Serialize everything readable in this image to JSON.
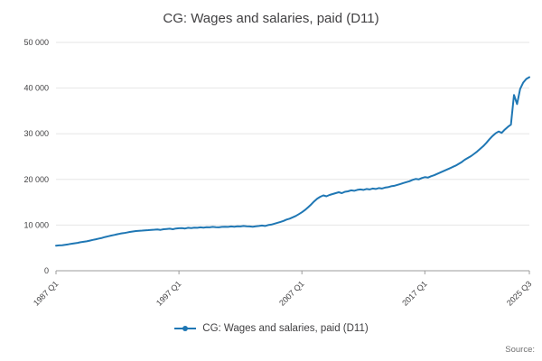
{
  "page": {
    "source_label": "Source:"
  },
  "chart_data": {
    "type": "line",
    "title": "CG: Wages and salaries, paid (D11)",
    "legend_position": "bottom",
    "grid": "horizontal",
    "line_color": "#1f77b4",
    "axis_color": "#9b9b9b",
    "grid_color": "#e6e6e6",
    "xlabel": "",
    "ylabel": "",
    "ylim": [
      0,
      50000
    ],
    "y_ticks": [
      0,
      10000,
      20000,
      30000,
      40000,
      50000
    ],
    "y_tick_labels": [
      "0",
      "10 000",
      "20 000",
      "30 000",
      "40 000",
      "50 000"
    ],
    "x_start": "1987 Q1",
    "x_end": "2025 Q3",
    "x_tick_labels": [
      "1987 Q1",
      "1997 Q1",
      "2007 Q1",
      "2017 Q1",
      "2025 Q3"
    ],
    "x_tick_indices": [
      0,
      40,
      80,
      120,
      154
    ],
    "series": [
      {
        "name": "CG: Wages and salaries, paid (D11)",
        "frequency": "quarterly",
        "values": [
          5500,
          5550,
          5600,
          5700,
          5800,
          5900,
          6000,
          6100,
          6250,
          6350,
          6450,
          6600,
          6750,
          6900,
          7050,
          7200,
          7400,
          7550,
          7700,
          7850,
          8000,
          8150,
          8250,
          8350,
          8500,
          8600,
          8700,
          8750,
          8800,
          8850,
          8900,
          8950,
          9000,
          9050,
          8950,
          9100,
          9150,
          9200,
          9100,
          9250,
          9300,
          9350,
          9250,
          9400,
          9350,
          9450,
          9400,
          9500,
          9450,
          9550,
          9500,
          9600,
          9550,
          9500,
          9600,
          9650,
          9600,
          9700,
          9650,
          9750,
          9700,
          9800,
          9750,
          9700,
          9650,
          9750,
          9800,
          9900,
          9800,
          10000,
          10100,
          10300,
          10500,
          10700,
          10900,
          11200,
          11400,
          11700,
          12000,
          12400,
          12800,
          13300,
          13900,
          14500,
          15200,
          15800,
          16200,
          16500,
          16300,
          16600,
          16800,
          17000,
          17200,
          17000,
          17300,
          17400,
          17600,
          17500,
          17700,
          17800,
          17700,
          17900,
          17800,
          18000,
          17900,
          18100,
          18000,
          18200,
          18300,
          18500,
          18600,
          18800,
          19000,
          19200,
          19400,
          19600,
          19900,
          20100,
          20000,
          20300,
          20500,
          20400,
          20700,
          20900,
          21200,
          21500,
          21800,
          22100,
          22400,
          22700,
          23000,
          23400,
          23800,
          24300,
          24700,
          25100,
          25600,
          26100,
          26700,
          27300,
          28000,
          28800,
          29500,
          30100,
          30500,
          30200,
          30900,
          31500,
          32000,
          38500,
          36500,
          39800,
          41200,
          42000,
          42400
        ]
      }
    ]
  }
}
